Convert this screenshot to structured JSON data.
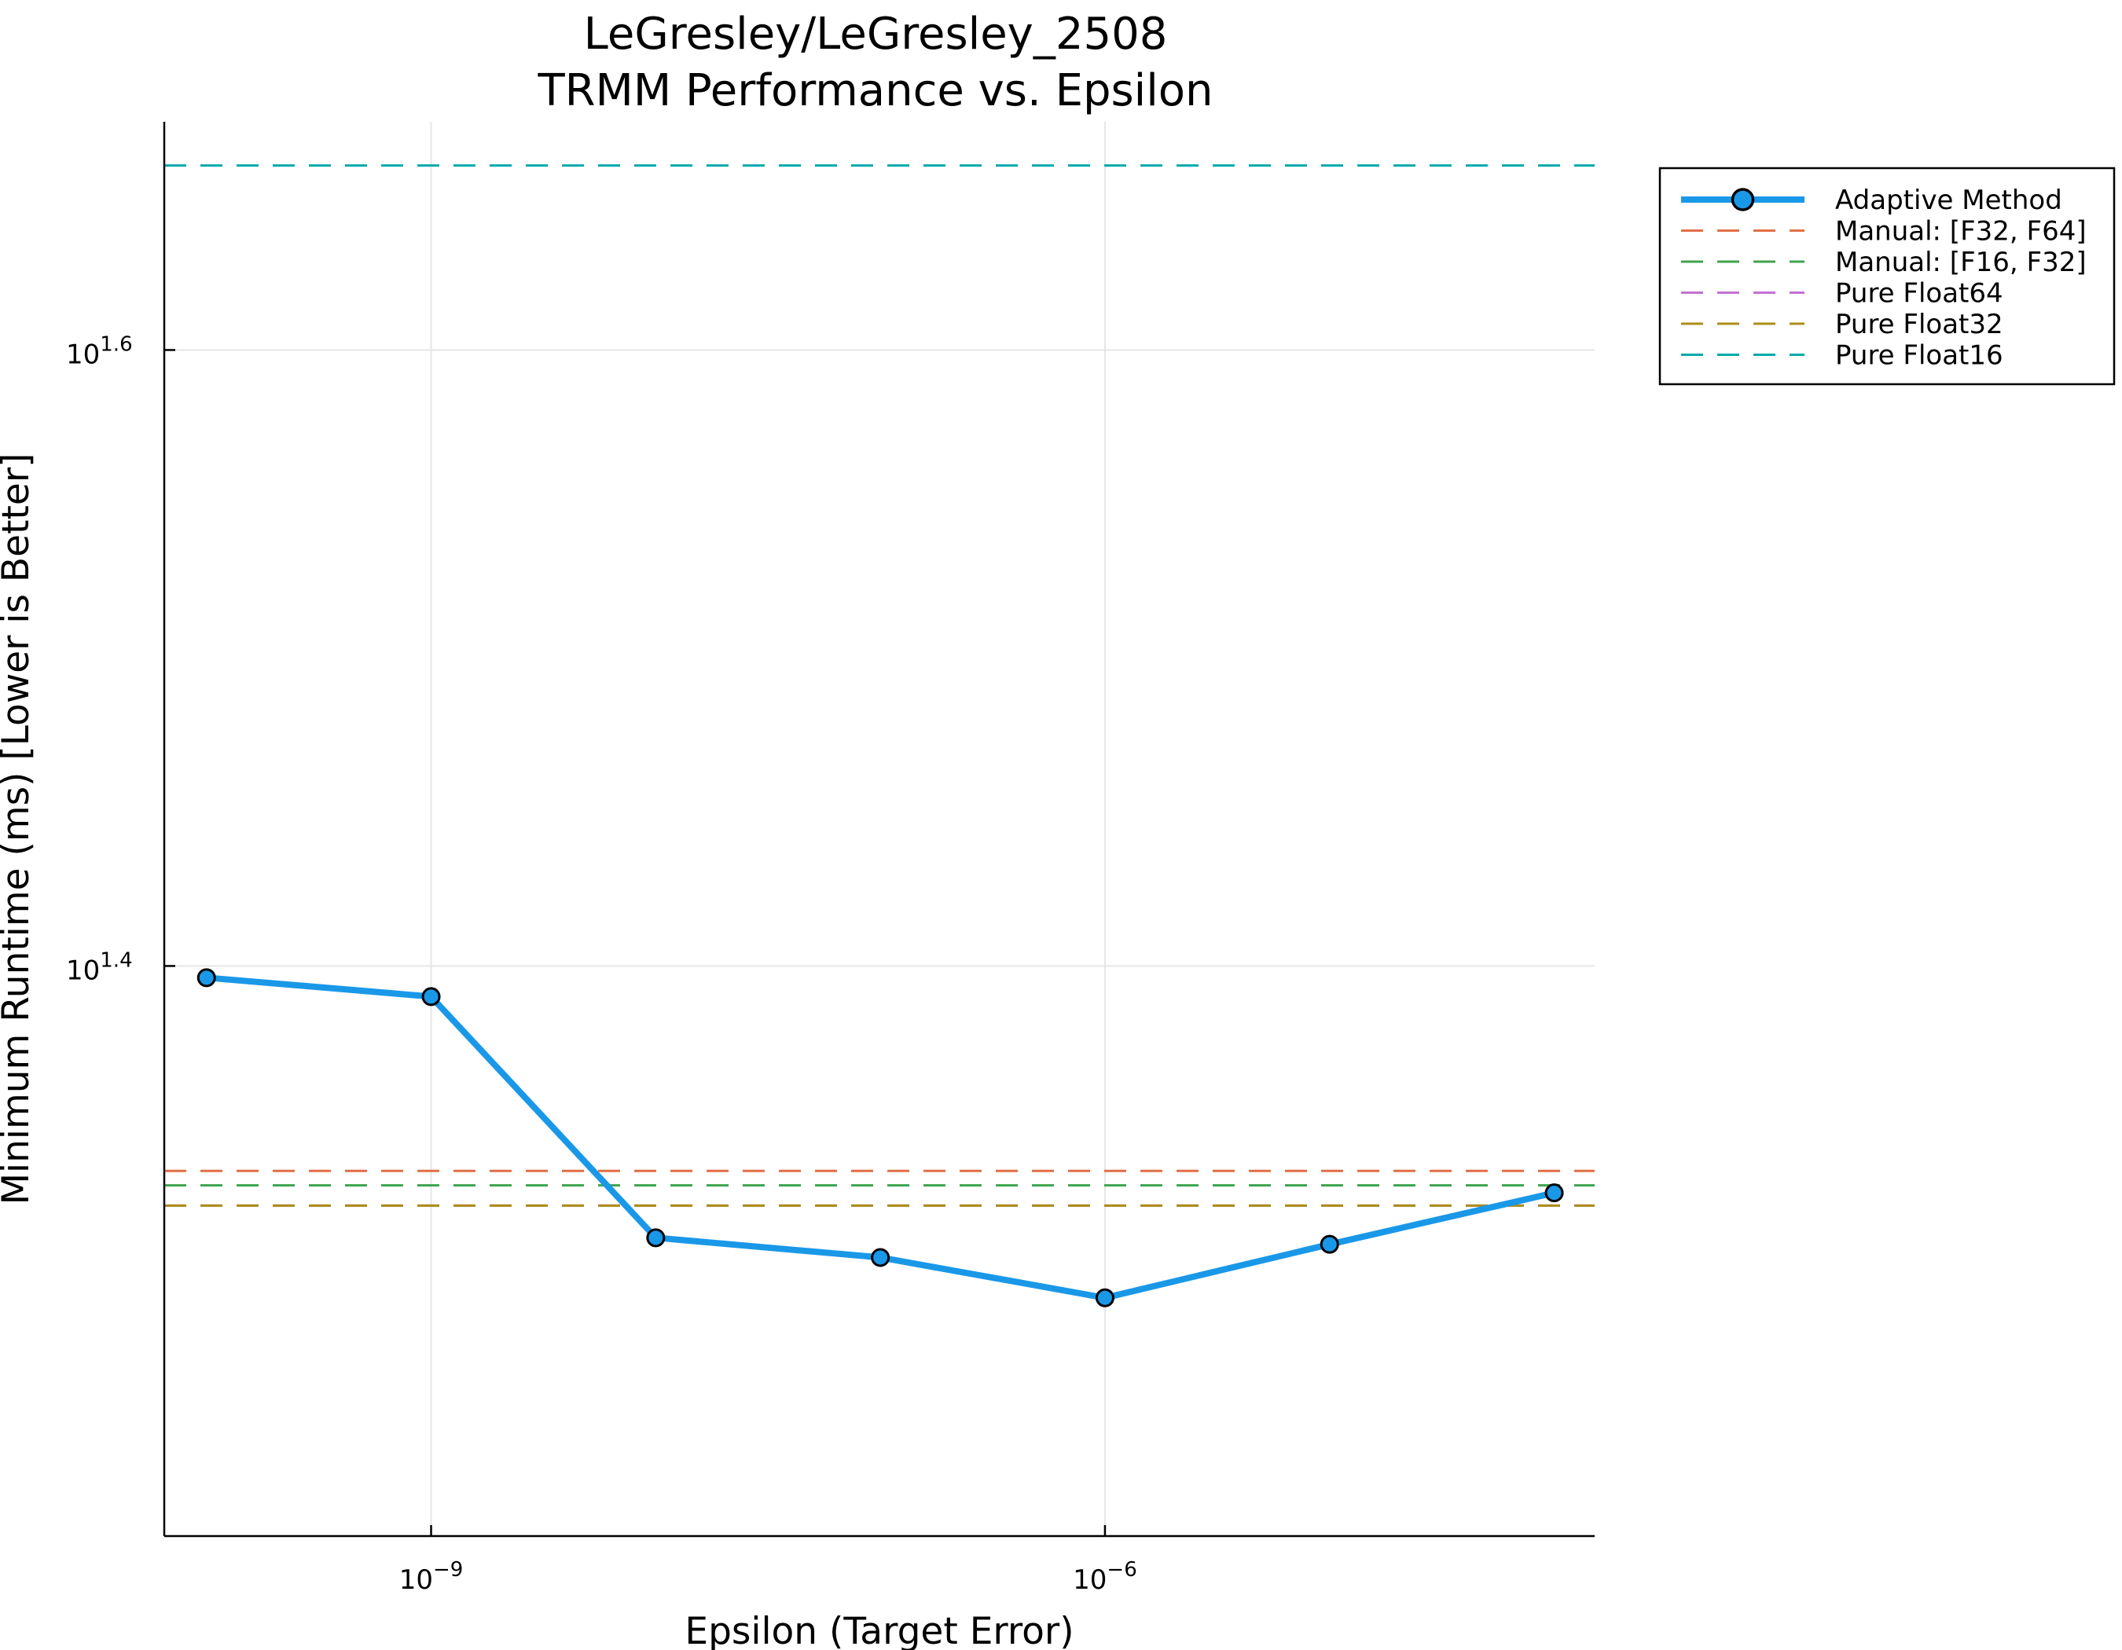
{
  "chart_data": {
    "type": "line",
    "title": "LeGresley/LeGresley_2508",
    "subtitle": "TRMM Performance vs. Epsilon",
    "xlabel": "Epsilon (Target Error)",
    "ylabel": "Minimum Runtime (ms) [Lower is Better]",
    "x_scale": "log10",
    "y_scale": "log10",
    "grid": true,
    "legend_position": "top-right (outside plot)",
    "x_ticks": [
      {
        "value": 1e-09,
        "base": "10",
        "exp": "−9"
      },
      {
        "value": 1e-06,
        "base": "10",
        "exp": "−6"
      }
    ],
    "y_ticks": [
      {
        "value_log10": 1.4,
        "base": "10",
        "exp": "1.4"
      },
      {
        "value_log10": 1.6,
        "base": "10",
        "exp": "1.6"
      }
    ],
    "xlim_log10": [
      -10.188,
      -3.82
    ],
    "ylim_log10": [
      1.2149,
      1.6741
    ],
    "series": [
      {
        "name": "Adaptive Method",
        "style": "line+markers",
        "color": "#1A98E8",
        "x": [
          1e-10,
          1e-09,
          1e-08,
          1e-07,
          1e-06,
          1e-05,
          0.0001
        ],
        "y": [
          24.9,
          24.55,
          20.5,
          20.2,
          19.6,
          20.4,
          21.2
        ]
      },
      {
        "name": "Manual: [F32, F64]",
        "style": "dashed-hline",
        "color": "#E26F46",
        "y": 21.55
      },
      {
        "name": "Manual: [F16, F32]",
        "style": "dashed-hline",
        "color": "#3EA44E",
        "y": 21.32
      },
      {
        "name": "Pure Float64",
        "style": "dashed-hline",
        "color": "#C271D2",
        "y": 21.0
      },
      {
        "name": "Pure Float32",
        "style": "dashed-hline",
        "color": "#AC8E18",
        "y": 21.0
      },
      {
        "name": "Pure Float16",
        "style": "dashed-hline",
        "color": "#00A9AD",
        "y": 45.7
      }
    ]
  }
}
